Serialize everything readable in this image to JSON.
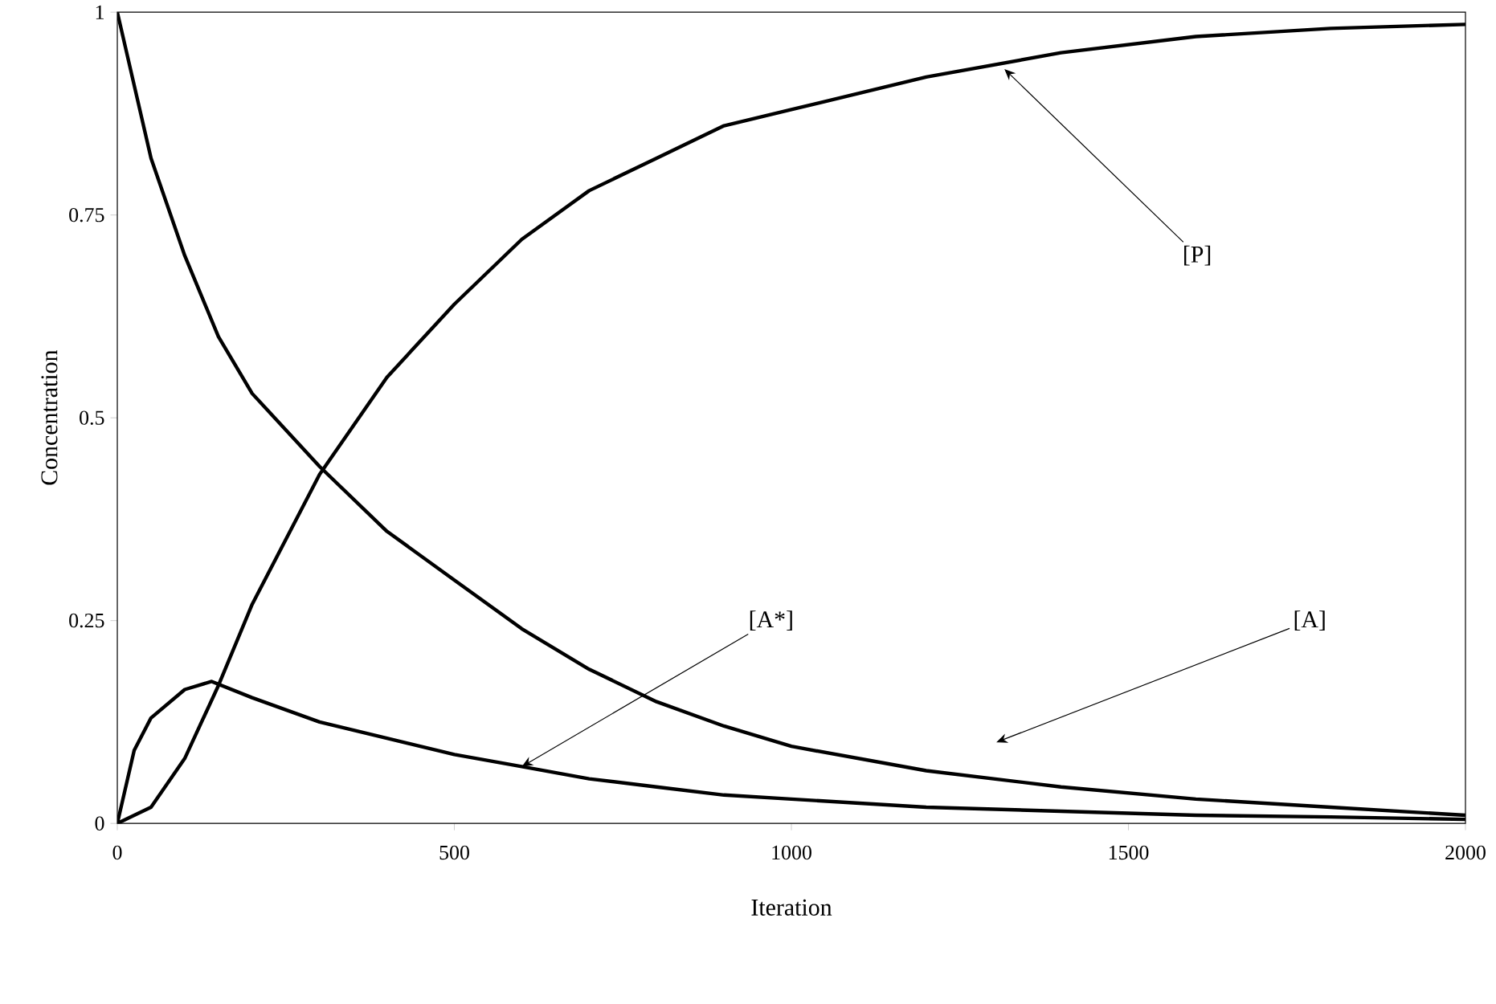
{
  "chart_data": {
    "type": "line",
    "xlabel": "Iteration",
    "ylabel": "Concentration",
    "xlim": [
      0,
      2000
    ],
    "ylim": [
      0,
      1
    ],
    "xticks": [
      0,
      500,
      1000,
      1500,
      2000
    ],
    "yticks": [
      0,
      0.25,
      0.5,
      0.75,
      1
    ],
    "series": [
      {
        "color": "#000000",
        "x": [
          0,
          50,
          100,
          150,
          200,
          300,
          400,
          500,
          600,
          700,
          800,
          900,
          1000,
          1200,
          1400,
          1600,
          1800,
          2000
        ],
        "values": [
          1,
          0.82,
          0.7,
          0.6,
          0.53,
          0.44,
          0.36,
          0.3,
          0.24,
          0.19,
          0.15,
          0.12,
          0.095,
          0.065,
          0.045,
          0.03,
          0.02,
          0.01
        ]
      },
      {
        "color": "#000000",
        "x": [
          0,
          50,
          100,
          150,
          200,
          300,
          400,
          500,
          600,
          700,
          800,
          900,
          1000,
          1200,
          1400,
          1600,
          1800,
          2000
        ],
        "values": [
          0,
          0.02,
          0.08,
          0.17,
          0.27,
          0.43,
          0.55,
          0.64,
          0.72,
          0.78,
          0.82,
          0.86,
          0.88,
          0.92,
          0.95,
          0.97,
          0.98,
          0.985
        ]
      },
      {
        "color": "#000000",
        "x": [
          0,
          25,
          50,
          100,
          140,
          200,
          300,
          400,
          500,
          600,
          700,
          800,
          900,
          1000,
          1200,
          1400,
          1600,
          1800,
          2000
        ],
        "values": [
          0,
          0.09,
          0.13,
          0.165,
          0.175,
          0.155,
          0.125,
          0.105,
          0.085,
          0.07,
          0.055,
          0.045,
          0.035,
          0.03,
          0.02,
          0.015,
          0.01,
          0.008,
          0.005
        ]
      }
    ],
    "annotations": [
      {
        "text": "[P]",
        "x": 1316,
        "y": 0.93
      },
      {
        "text": "[A*]",
        "x": 600,
        "y": 0.07
      },
      "[A]"
    ]
  }
}
